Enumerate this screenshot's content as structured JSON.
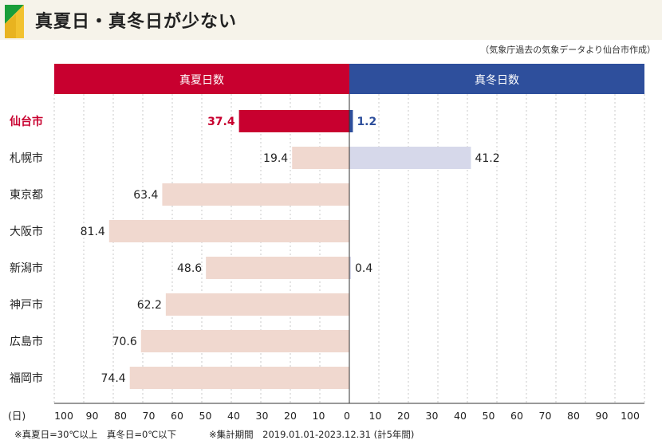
{
  "title": "真夏日・真冬日が少ない",
  "source": "（気象庁過去の気象データより仙台市作成）",
  "footnotes": {
    "definition": "※真夏日=30℃以上　真冬日=0℃以下",
    "period": "※集計期間　2019.01.01-2023.12.31 (計5年間)"
  },
  "colors": {
    "summer_highlight": "#c8002f",
    "winter_highlight": "#2e4f9c",
    "summer_bar": "#f0d8cf",
    "winter_bar": "#d6d8ea",
    "header_summer": "#c8002f",
    "header_winter": "#2e4f9c",
    "highlight_text": "#c8002f"
  },
  "chart_data": {
    "type": "bar",
    "orientation": "horizontal-diverging",
    "categories": [
      "仙台市",
      "札幌市",
      "東京都",
      "大阪市",
      "新潟市",
      "神戸市",
      "広島市",
      "福岡市"
    ],
    "highlight_category": "仙台市",
    "series": [
      {
        "name": "真夏日数",
        "side": "left",
        "values": [
          37.4,
          19.4,
          63.4,
          81.4,
          48.6,
          62.2,
          70.6,
          74.4
        ]
      },
      {
        "name": "真冬日数",
        "side": "right",
        "values": [
          1.2,
          41.2,
          null,
          null,
          0.4,
          null,
          null,
          null
        ]
      }
    ],
    "axis_unit": "(日)",
    "ticks": [
      100,
      90,
      80,
      70,
      60,
      50,
      40,
      30,
      20,
      10,
      0,
      10,
      20,
      30,
      40,
      50,
      60,
      70,
      80,
      90,
      100
    ],
    "xlim": [
      0,
      100
    ],
    "grid": true
  }
}
